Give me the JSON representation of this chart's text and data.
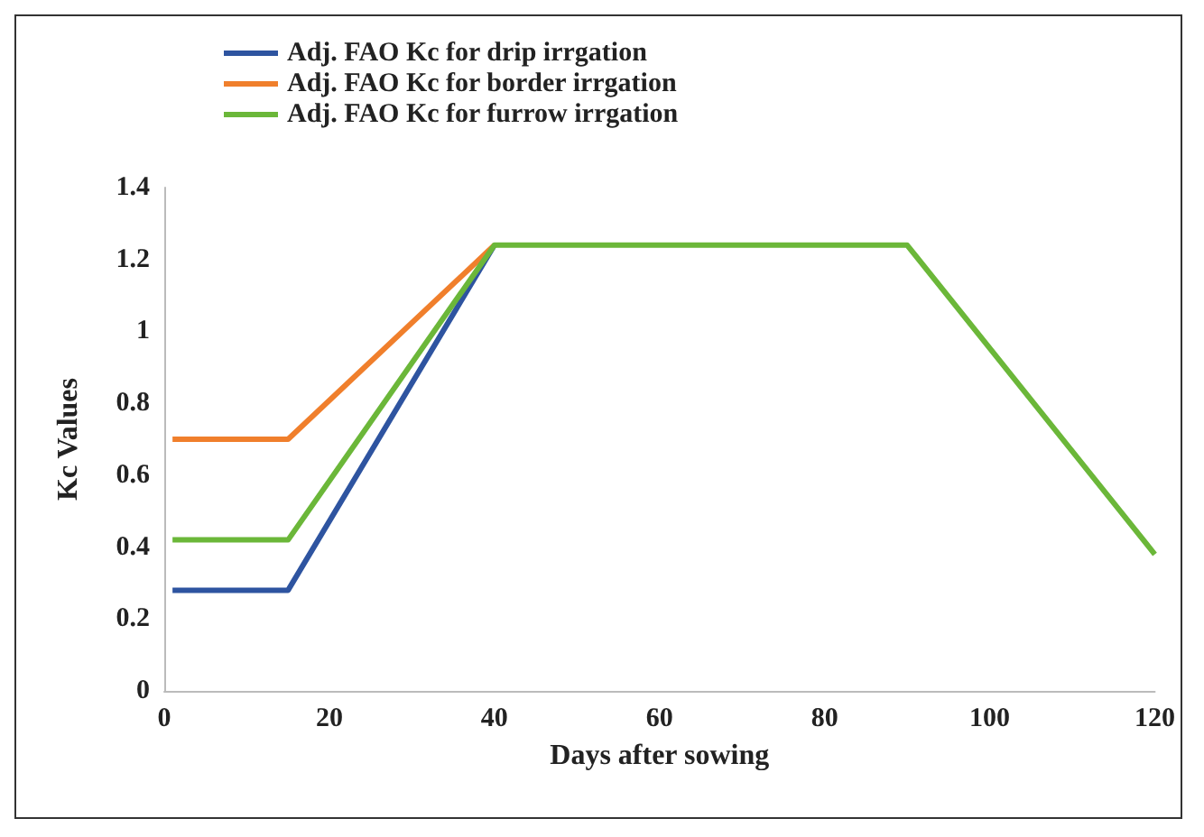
{
  "chart_data": {
    "type": "line",
    "xlabel": "Days after sowing",
    "ylabel": "Kc Values",
    "x": [
      1,
      15,
      40,
      90,
      120
    ],
    "series": [
      {
        "name": "Adj. FAO Kc for drip irrgation",
        "color": "#2e54a0",
        "values": [
          0.28,
          0.28,
          1.24,
          null,
          null
        ]
      },
      {
        "name": "Adj. FAO Kc for border irrgation",
        "color": "#f07f2c",
        "values": [
          0.7,
          0.7,
          1.24,
          null,
          null
        ]
      },
      {
        "name": "Adj. FAO Kc for furrow irrgation",
        "color": "#6bb739",
        "values": [
          0.42,
          0.42,
          1.24,
          1.24,
          0.38
        ]
      }
    ],
    "xlim": [
      0,
      120
    ],
    "xticks": [
      0,
      20,
      40,
      60,
      80,
      100,
      120
    ],
    "ylim": [
      0,
      1.4
    ],
    "yticks": [
      0,
      0.2,
      0.4,
      0.6,
      0.8,
      1,
      1.2,
      1.4
    ],
    "grid": false,
    "legend": "top",
    "marker": "none",
    "line_style": "solid"
  }
}
